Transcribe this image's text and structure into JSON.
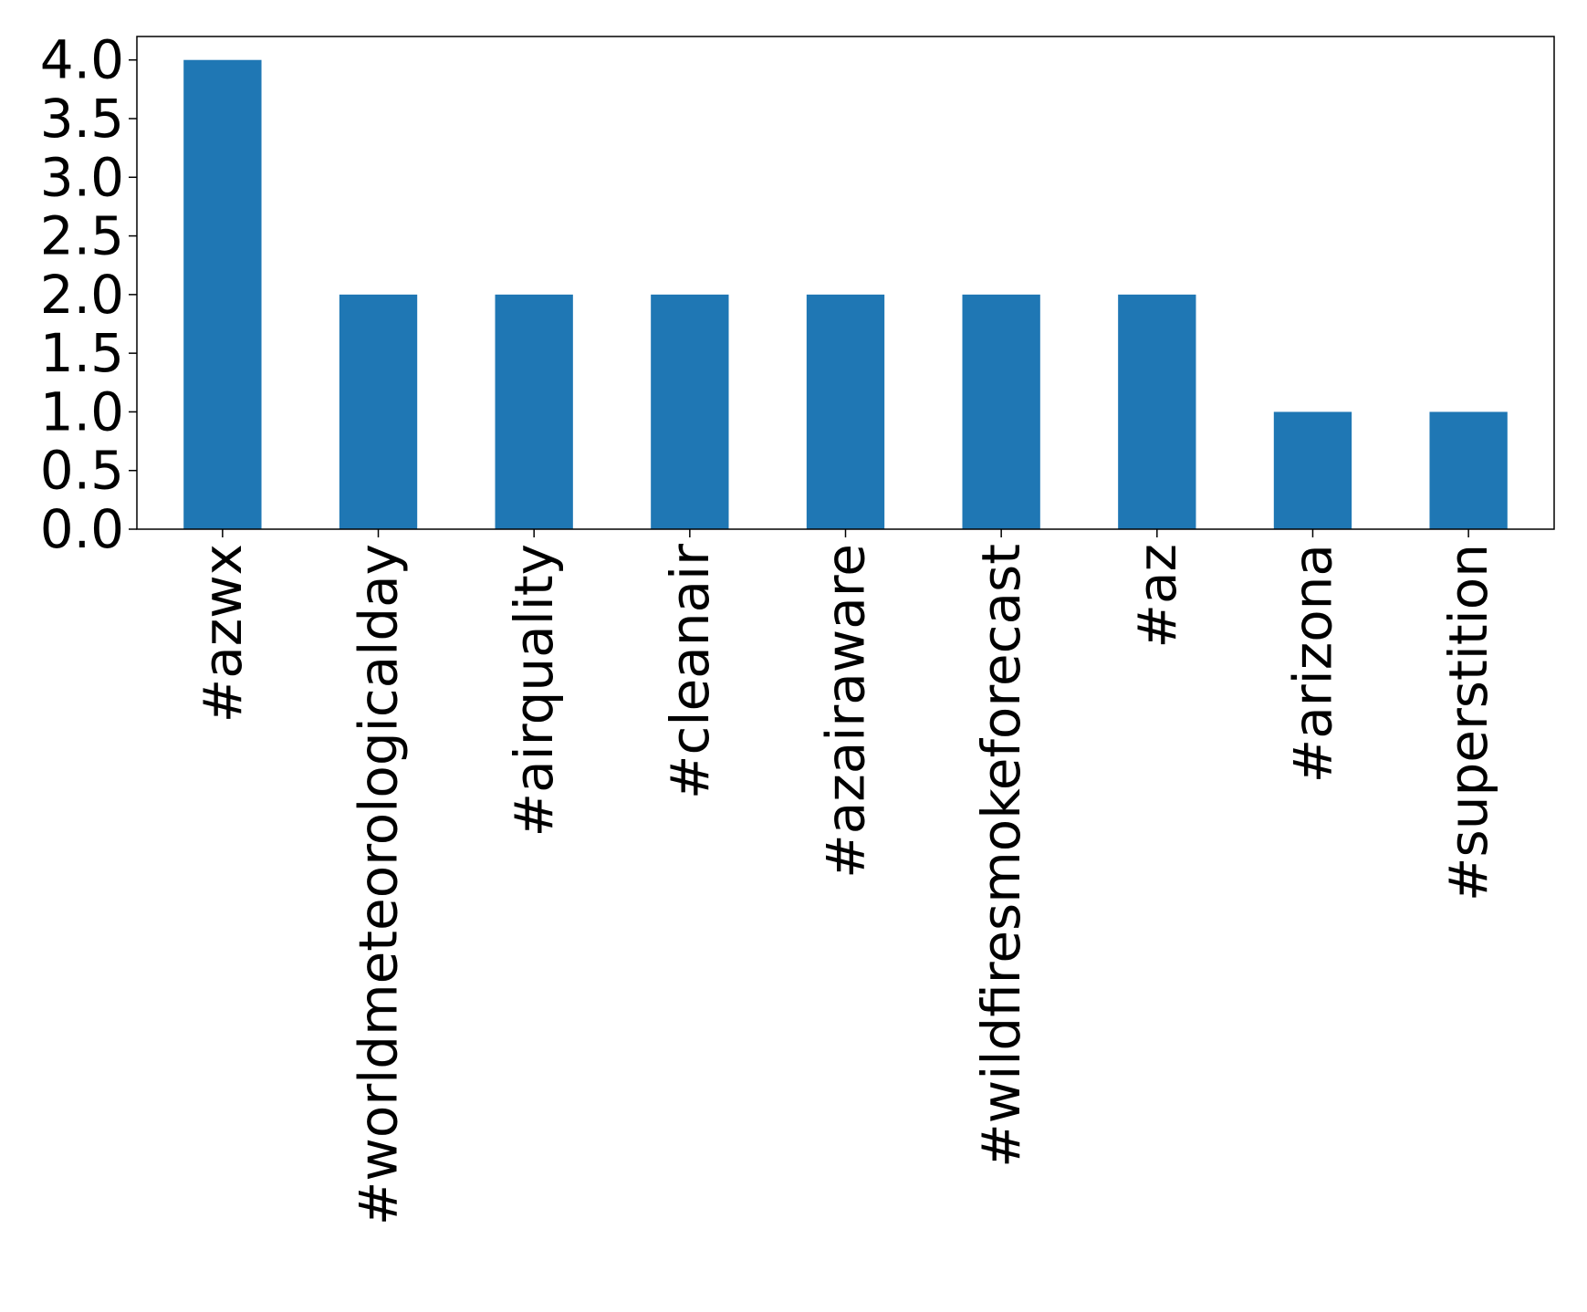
{
  "chart_data": {
    "type": "bar",
    "title": "",
    "xlabel": "",
    "ylabel": "",
    "categories": [
      "#azwx",
      "#worldmeteorologicalday",
      "#airquality",
      "#cleanair",
      "#azairaware",
      "#wildfiresmokeforecast",
      "#az",
      "#arizona",
      "#superstition"
    ],
    "values": [
      4,
      2,
      2,
      2,
      2,
      2,
      2,
      1,
      1
    ],
    "ylim": [
      0,
      4.2
    ],
    "yticks": [
      "0.0",
      "0.5",
      "1.0",
      "1.5",
      "2.0",
      "2.5",
      "3.0",
      "3.5",
      "4.0"
    ],
    "bar_color": "#1f77b4",
    "grid": false,
    "legend": "none"
  }
}
